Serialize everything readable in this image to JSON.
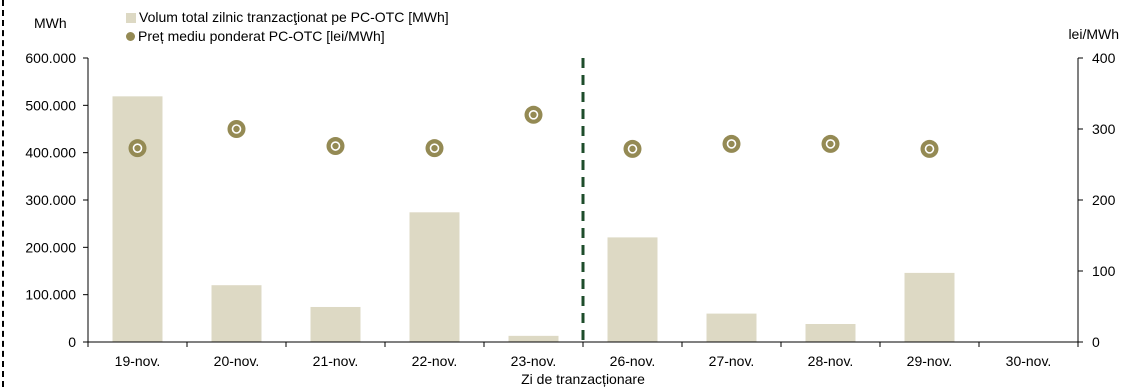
{
  "chart_data": {
    "type": "bar",
    "categories": [
      "19-nov.",
      "20-nov.",
      "21-nov.",
      "22-nov.",
      "23-nov.",
      "26-nov.",
      "27-nov.",
      "28-nov.",
      "29-nov.",
      "30-nov."
    ],
    "series": [
      {
        "name": "Volum total zilnic tranzacţionat pe PC-OTC [MWh]",
        "type": "bar",
        "axis": "left",
        "color": "#ddd9c4",
        "values": [
          519000,
          120000,
          74000,
          274000,
          13000,
          221000,
          60000,
          38000,
          146000,
          null
        ]
      },
      {
        "name": "Preț mediu ponderat PC-OTC [lei/MWh]",
        "type": "scatter",
        "axis": "right",
        "color": "#948a54",
        "values": [
          273,
          300,
          276,
          273,
          320,
          272,
          279,
          279,
          272,
          null
        ]
      }
    ],
    "xlabel": "Zi de tranzacționare",
    "ylabel": "MWh",
    "ylabel_right": "lei/MWh",
    "ylim": [
      0,
      600000
    ],
    "ylim_right": [
      0,
      400
    ],
    "yticks": [
      "0",
      "100.000",
      "200.000",
      "300.000",
      "400.000",
      "500.000",
      "600.000"
    ],
    "yticks_right": [
      "0",
      "100",
      "200",
      "300",
      "400"
    ],
    "divider_after_category": "23-nov.",
    "divider_color": "#1e4d2b",
    "grid": false,
    "legend_position": "top-left"
  }
}
